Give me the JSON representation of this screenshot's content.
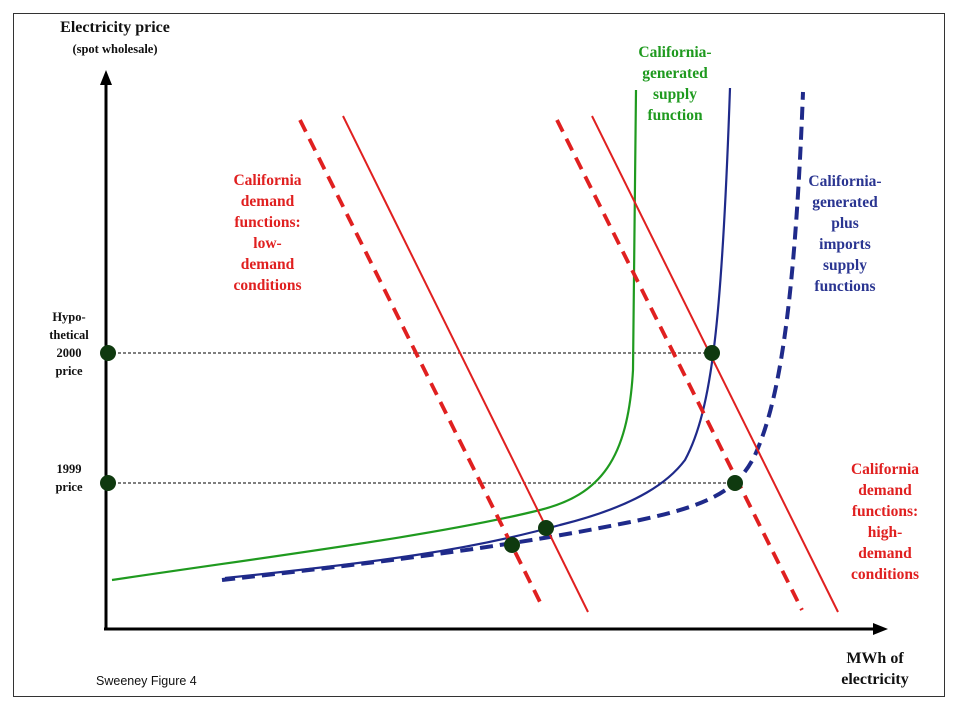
{
  "axes": {
    "y_title": "Electricity price",
    "y_subtitle": "(spot wholesale)",
    "x_title_line1": "MWh of",
    "x_title_line2": "electricity"
  },
  "price_levels": {
    "hypothetical_2000": [
      "Hypo-",
      "thetical",
      "2000",
      "price"
    ],
    "p1999": [
      "1999",
      "price"
    ]
  },
  "labels": {
    "ca_supply": [
      "California-",
      "generated",
      "supply",
      "function"
    ],
    "ca_imports_supply": [
      "California-",
      "generated",
      "plus",
      "imports",
      "supply",
      "functions"
    ],
    "low_demand": [
      "California",
      "demand",
      "functions:",
      "low-",
      "demand",
      "conditions"
    ],
    "high_demand": [
      "California",
      "demand",
      "functions:",
      "high-",
      "demand",
      "conditions"
    ]
  },
  "caption": "Sweeney Figure 4",
  "colors": {
    "supply_ca": "#1f9a1f",
    "supply_imports": "#1f2a8a",
    "demand": "#e02020",
    "equilibrium_point": "#0f3a0f",
    "axis": "#000000"
  }
}
